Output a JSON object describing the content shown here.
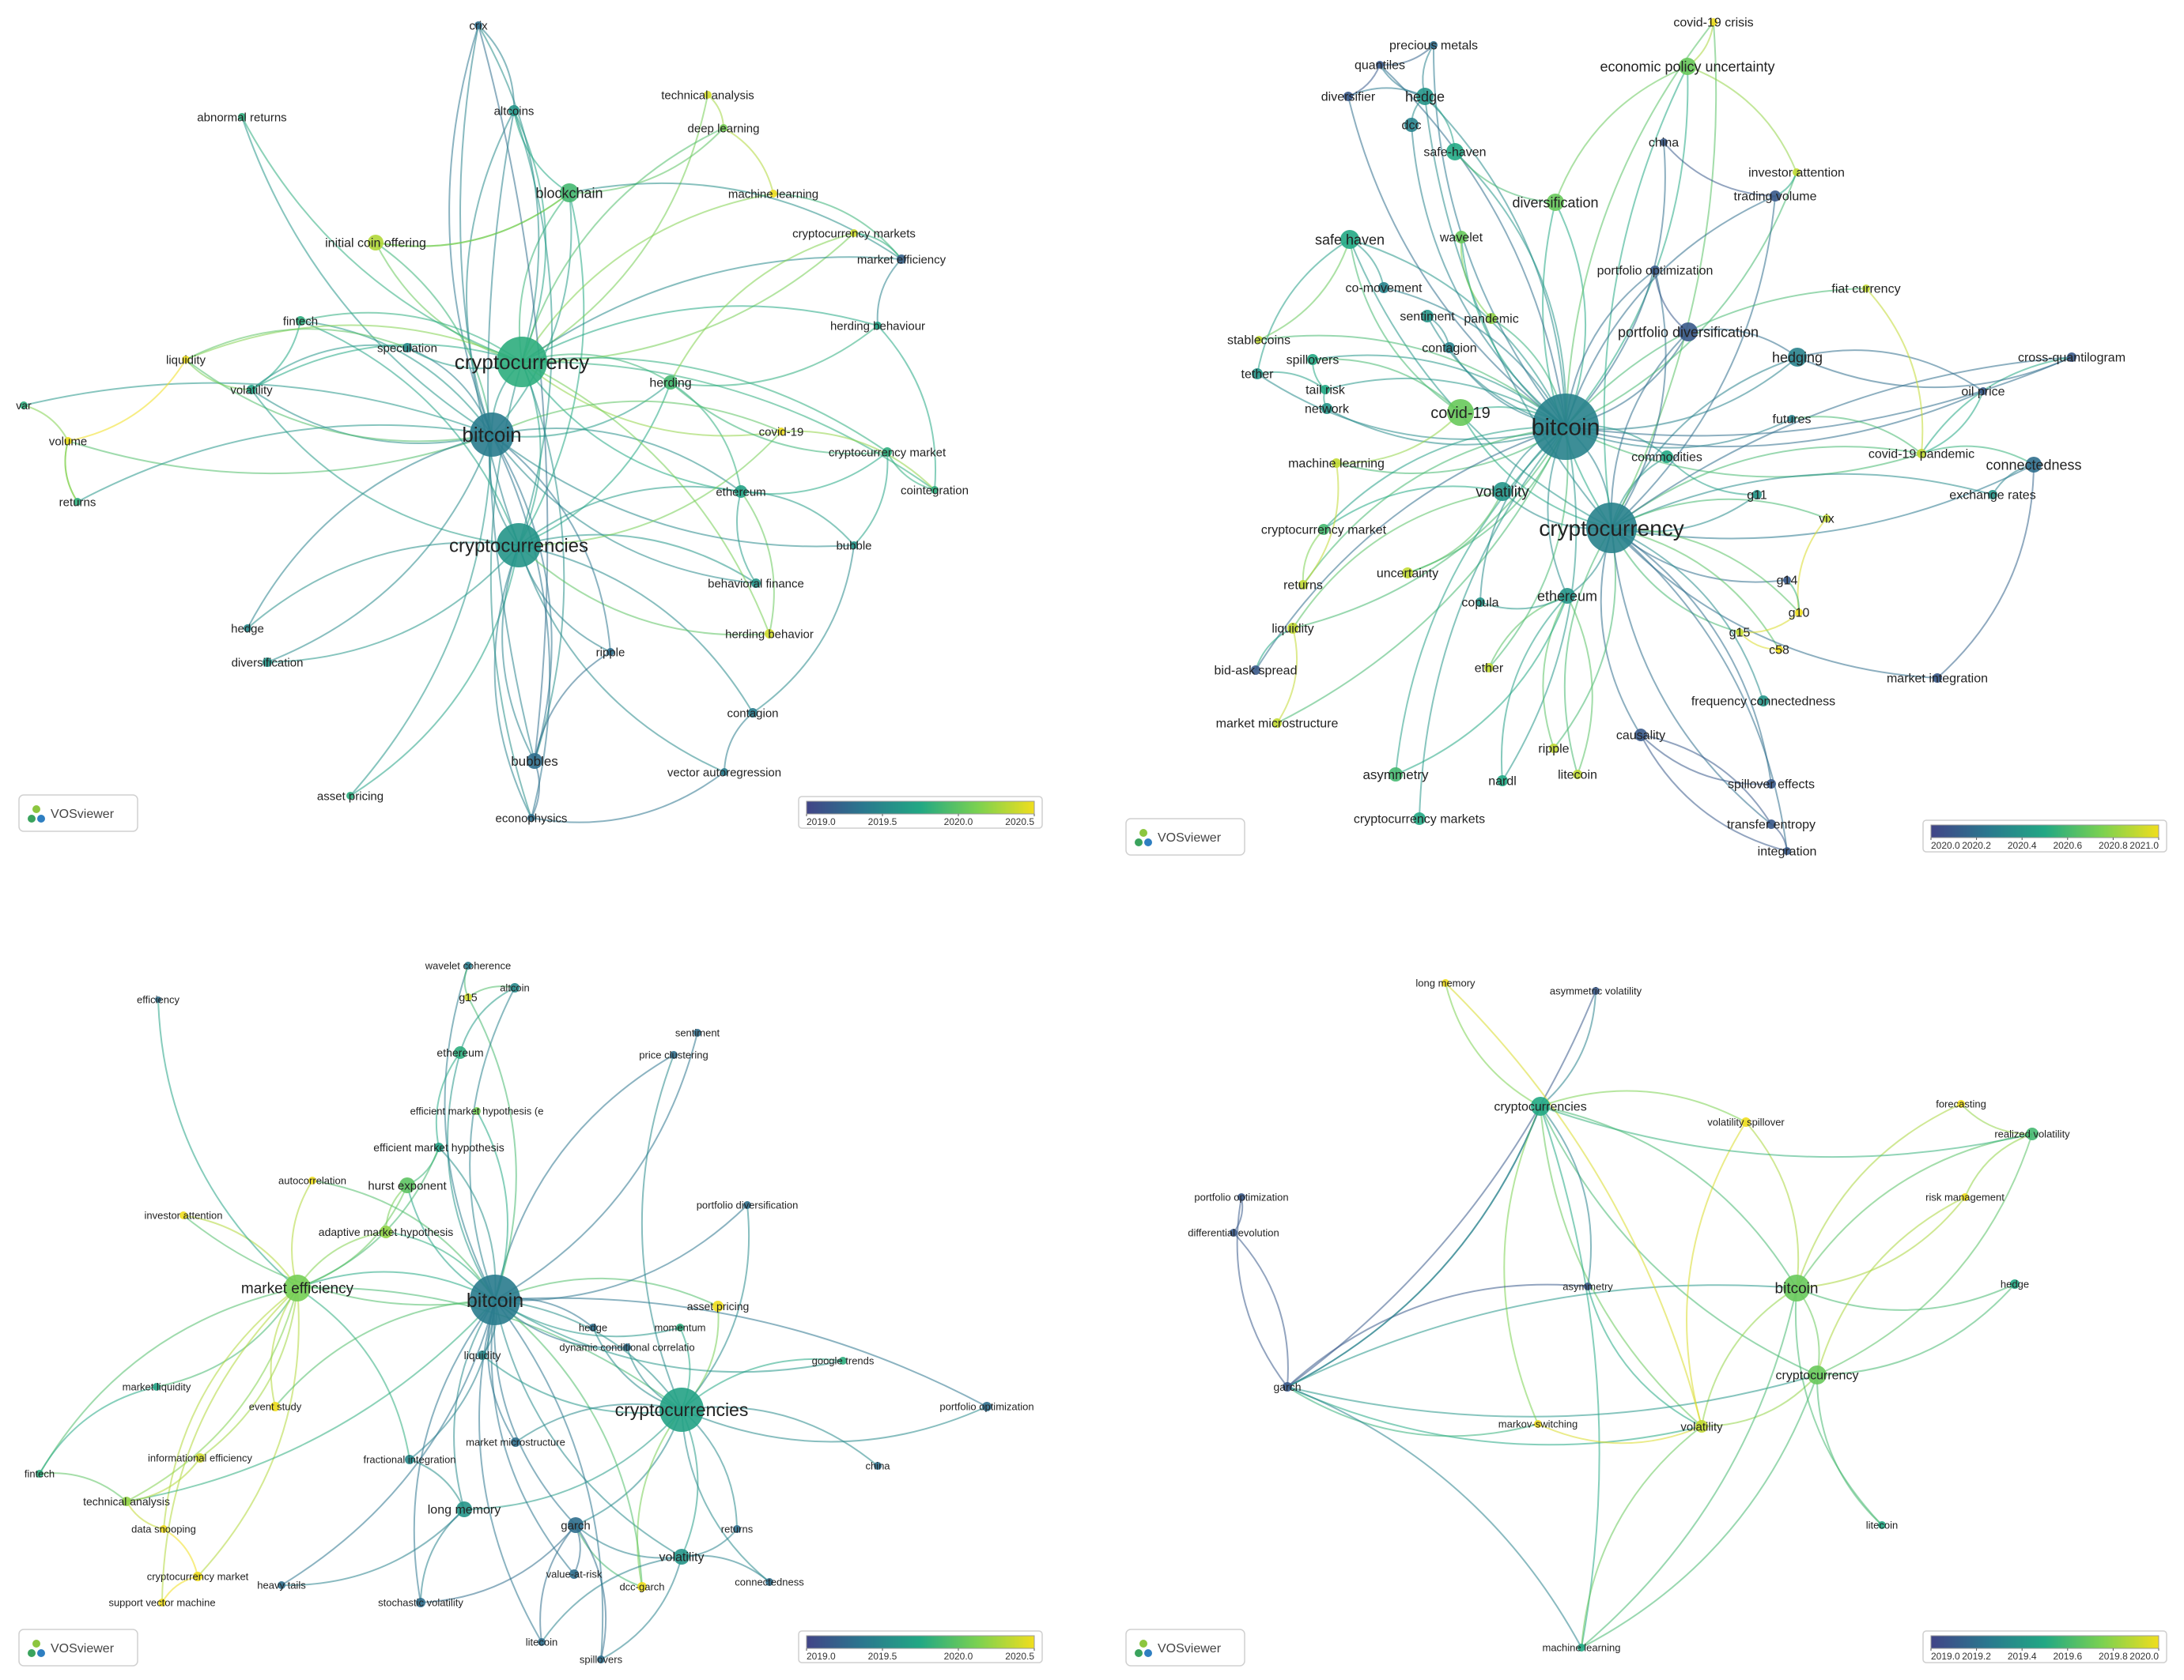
{
  "branding": {
    "logo_text": "VOSviewer"
  },
  "networks": [
    {
      "id": "n1",
      "legend": {
        "ticks": [
          "2019.0",
          "2019.5",
          "2020.0",
          "2020.5"
        ]
      },
      "nodes": [
        {
          "label": "crix",
          "year": 2019.3
        },
        {
          "label": "altcoins",
          "year": 2019.6
        },
        {
          "label": "technical analysis",
          "year": 2020.4
        },
        {
          "label": "abnormal returns",
          "year": 2019.8
        },
        {
          "label": "deep learning",
          "year": 2020.1
        },
        {
          "label": "blockchain",
          "year": 2019.9
        },
        {
          "label": "machine learning",
          "year": 2020.5
        },
        {
          "label": "cryptocurrency markets",
          "year": 2020.4
        },
        {
          "label": "initial coin offering",
          "year": 2020.3
        },
        {
          "label": "market efficiency",
          "year": 2019.2
        },
        {
          "label": "herding behaviour",
          "year": 2019.7
        },
        {
          "label": "fintech",
          "year": 2019.8
        },
        {
          "label": "speculation",
          "year": 2019.5
        },
        {
          "label": "cryptocurrency",
          "year": 2019.8
        },
        {
          "label": "liquidity",
          "year": 2020.5
        },
        {
          "label": "volatility",
          "year": 2019.7
        },
        {
          "label": "herding",
          "year": 2019.9
        },
        {
          "label": "var",
          "year": 2019.8
        },
        {
          "label": "volume",
          "year": 2020.5
        },
        {
          "label": "bitcoin",
          "year": 2019.4
        },
        {
          "label": "covid-19",
          "year": 2020.6
        },
        {
          "label": "cryptocurrency market",
          "year": 2019.8
        },
        {
          "label": "cointegration",
          "year": 2019.8
        },
        {
          "label": "returns",
          "year": 2019.8
        },
        {
          "label": "ethereum",
          "year": 2019.7
        },
        {
          "label": "cryptocurrencies",
          "year": 2019.6
        },
        {
          "label": "bubble",
          "year": 2019.6
        },
        {
          "label": "behavioral finance",
          "year": 2019.6
        },
        {
          "label": "hedge",
          "year": 2019.5
        },
        {
          "label": "herding behavior",
          "year": 2020.4
        },
        {
          "label": "diversification",
          "year": 2019.6
        },
        {
          "label": "ripple",
          "year": 2019.3
        },
        {
          "label": "contagion",
          "year": 2019.4
        },
        {
          "label": "bubbles",
          "year": 2019.3
        },
        {
          "label": "vector autoregression",
          "year": 2019.4
        },
        {
          "label": "asset pricing",
          "year": 2019.8
        },
        {
          "label": "econophysics",
          "year": 2019.3
        }
      ]
    },
    {
      "id": "n2",
      "legend": {
        "ticks": [
          "2020.0",
          "2020.2",
          "2020.4",
          "2020.6",
          "2020.8",
          "2021.0"
        ]
      },
      "nodes": [
        {
          "label": "covid-19 crisis",
          "year": 2021.0
        },
        {
          "label": "precious metals",
          "year": 2020.2
        },
        {
          "label": "economic policy uncertainty",
          "year": 2020.7
        },
        {
          "label": "quantiles",
          "year": 2020.1
        },
        {
          "label": "diversifier",
          "year": 2020.1
        },
        {
          "label": "hedge",
          "year": 2020.4
        },
        {
          "label": "china",
          "year": 2020.1
        },
        {
          "label": "dcc",
          "year": 2020.3
        },
        {
          "label": "safe-haven",
          "year": 2020.5
        },
        {
          "label": "investor attention",
          "year": 2020.9
        },
        {
          "label": "trading volume",
          "year": 2020.1
        },
        {
          "label": "diversification",
          "year": 2020.7
        },
        {
          "label": "wavelet",
          "year": 2020.7
        },
        {
          "label": "safe haven",
          "year": 2020.5
        },
        {
          "label": "portfolio optimization",
          "year": 2020.1
        },
        {
          "label": "fiat currency",
          "year": 2020.9
        },
        {
          "label": "co-movement",
          "year": 2020.3
        },
        {
          "label": "sentiment",
          "year": 2020.4
        },
        {
          "label": "pandemic",
          "year": 2020.8
        },
        {
          "label": "portfolio diversification",
          "year": 2020.1
        },
        {
          "label": "stablecoins",
          "year": 2020.9
        },
        {
          "label": "contagion",
          "year": 2020.3
        },
        {
          "label": "spillovers",
          "year": 2020.5
        },
        {
          "label": "hedging",
          "year": 2020.3
        },
        {
          "label": "cross-quantilogram",
          "year": 2020.1
        },
        {
          "label": "tether",
          "year": 2020.4
        },
        {
          "label": "tail risk",
          "year": 2020.5
        },
        {
          "label": "oil price",
          "year": 2020.1
        },
        {
          "label": "network",
          "year": 2020.4
        },
        {
          "label": "covid-19",
          "year": 2020.7
        },
        {
          "label": "bitcoin",
          "year": 2020.3
        },
        {
          "label": "futures",
          "year": 2020.3
        },
        {
          "label": "machine learning",
          "year": 2020.9
        },
        {
          "label": "commodities",
          "year": 2020.5
        },
        {
          "label": "covid-19 pandemic",
          "year": 2020.9
        },
        {
          "label": "connectedness",
          "year": 2020.2
        },
        {
          "label": "volatility",
          "year": 2020.4
        },
        {
          "label": "exchange rates",
          "year": 2020.4
        },
        {
          "label": "g11",
          "year": 2020.4
        },
        {
          "label": "cryptocurrency market",
          "year": 2020.6
        },
        {
          "label": "cryptocurrency",
          "year": 2020.3
        },
        {
          "label": "vix",
          "year": 2020.9
        },
        {
          "label": "uncertainty",
          "year": 2020.9
        },
        {
          "label": "g14",
          "year": 2020.1
        },
        {
          "label": "returns",
          "year": 2020.9
        },
        {
          "label": "ethereum",
          "year": 2020.4
        },
        {
          "label": "copula",
          "year": 2020.4
        },
        {
          "label": "g10",
          "year": 2021.0
        },
        {
          "label": "liquidity",
          "year": 2020.9
        },
        {
          "label": "g15",
          "year": 2020.9
        },
        {
          "label": "c58",
          "year": 2021.0
        },
        {
          "label": "ether",
          "year": 2020.9
        },
        {
          "label": "bid-ask spread",
          "year": 2020.1
        },
        {
          "label": "market integration",
          "year": 2020.1
        },
        {
          "label": "frequency connectedness",
          "year": 2020.4
        },
        {
          "label": "market microstructure",
          "year": 2020.9
        },
        {
          "label": "causality",
          "year": 2020.1
        },
        {
          "label": "ripple",
          "year": 2020.9
        },
        {
          "label": "asymmetry",
          "year": 2020.6
        },
        {
          "label": "nardl",
          "year": 2020.5
        },
        {
          "label": "litecoin",
          "year": 2020.9
        },
        {
          "label": "spillover effects",
          "year": 2020.1
        },
        {
          "label": "cryptocurrency markets",
          "year": 2020.5
        },
        {
          "label": "transfer entropy",
          "year": 2020.1
        },
        {
          "label": "integration",
          "year": 2020.1
        }
      ]
    },
    {
      "id": "n3",
      "legend": {
        "ticks": [
          "2019.0",
          "2019.5",
          "2020.0",
          "2020.5"
        ]
      },
      "nodes": [
        {
          "label": "wavelet coherence",
          "year": 2019.4
        },
        {
          "label": "g15",
          "year": 2020.4
        },
        {
          "label": "altcoin",
          "year": 2019.5
        },
        {
          "label": "efficiency",
          "year": 2019.3
        },
        {
          "label": "sentiment",
          "year": 2019.3
        },
        {
          "label": "price clustering",
          "year": 2019.3
        },
        {
          "label": "ethereum",
          "year": 2019.8
        },
        {
          "label": "efficient market hypothesis (e",
          "year": 2020.1
        },
        {
          "label": "efficient market hypothesis",
          "year": 2019.7
        },
        {
          "label": "autocorrelation",
          "year": 2020.5
        },
        {
          "label": "hurst exponent",
          "year": 2020.0
        },
        {
          "label": "portfolio diversification",
          "year": 2019.3
        },
        {
          "label": "investor attention",
          "year": 2020.5
        },
        {
          "label": "adaptive market hypothesis",
          "year": 2020.2
        },
        {
          "label": "market efficiency",
          "year": 2020.1
        },
        {
          "label": "bitcoin",
          "year": 2019.4
        },
        {
          "label": "asset pricing",
          "year": 2020.5
        },
        {
          "label": "hedge",
          "year": 2019.3
        },
        {
          "label": "momentum",
          "year": 2019.8
        },
        {
          "label": "liquidity",
          "year": 2019.5
        },
        {
          "label": "dynamic conditional correlatio",
          "year": 2019.3
        },
        {
          "label": "google trends",
          "year": 2019.8
        },
        {
          "label": "market liquidity",
          "year": 2019.7
        },
        {
          "label": "event study",
          "year": 2020.5
        },
        {
          "label": "portfolio optimization",
          "year": 2019.3
        },
        {
          "label": "cryptocurrencies",
          "year": 2019.7
        },
        {
          "label": "market microstructure",
          "year": 2019.3
        },
        {
          "label": "informational efficiency",
          "year": 2020.4
        },
        {
          "label": "fractional integration",
          "year": 2019.5
        },
        {
          "label": "china",
          "year": 2019.3
        },
        {
          "label": "fintech",
          "year": 2019.8
        },
        {
          "label": "technical analysis",
          "year": 2020.2
        },
        {
          "label": "long memory",
          "year": 2019.6
        },
        {
          "label": "garch",
          "year": 2019.3
        },
        {
          "label": "returns",
          "year": 2019.3
        },
        {
          "label": "data snooping",
          "year": 2020.5
        },
        {
          "label": "volatility",
          "year": 2019.6
        },
        {
          "label": "value-at-risk",
          "year": 2019.3
        },
        {
          "label": "cryptocurrency market",
          "year": 2020.5
        },
        {
          "label": "heavy tails",
          "year": 2019.3
        },
        {
          "label": "dcc-garch",
          "year": 2020.5
        },
        {
          "label": "connectedness",
          "year": 2019.3
        },
        {
          "label": "support vector machine",
          "year": 2020.5
        },
        {
          "label": "stochastic volatility",
          "year": 2019.3
        },
        {
          "label": "litecoin",
          "year": 2019.3
        },
        {
          "label": "spillovers",
          "year": 2019.3
        }
      ]
    },
    {
      "id": "n4",
      "legend": {
        "ticks": [
          "2019.0",
          "2019.2",
          "2019.4",
          "2019.6",
          "2019.8",
          "2020.0"
        ]
      },
      "nodes": [
        {
          "label": "long memory",
          "year": 2020.0
        },
        {
          "label": "asymmetric volatility",
          "year": 2019.1
        },
        {
          "label": "cryptocurrencies",
          "year": 2019.5
        },
        {
          "label": "forecasting",
          "year": 2020.0
        },
        {
          "label": "volatility spillover",
          "year": 2020.0
        },
        {
          "label": "realized volatility",
          "year": 2019.6
        },
        {
          "label": "portfolio optimization",
          "year": 2019.1
        },
        {
          "label": "risk management",
          "year": 2020.0
        },
        {
          "label": "differential evolution",
          "year": 2019.1
        },
        {
          "label": "asymmetry",
          "year": 2019.1
        },
        {
          "label": "hedge",
          "year": 2019.5
        },
        {
          "label": "bitcoin",
          "year": 2019.7
        },
        {
          "label": "cryptocurrency",
          "year": 2019.7
        },
        {
          "label": "garch",
          "year": 2019.1
        },
        {
          "label": "markov-switching",
          "year": 2020.0
        },
        {
          "label": "volatility",
          "year": 2019.9
        },
        {
          "label": "litecoin",
          "year": 2019.5
        },
        {
          "label": "machine learning",
          "year": 2019.5
        }
      ]
    }
  ]
}
